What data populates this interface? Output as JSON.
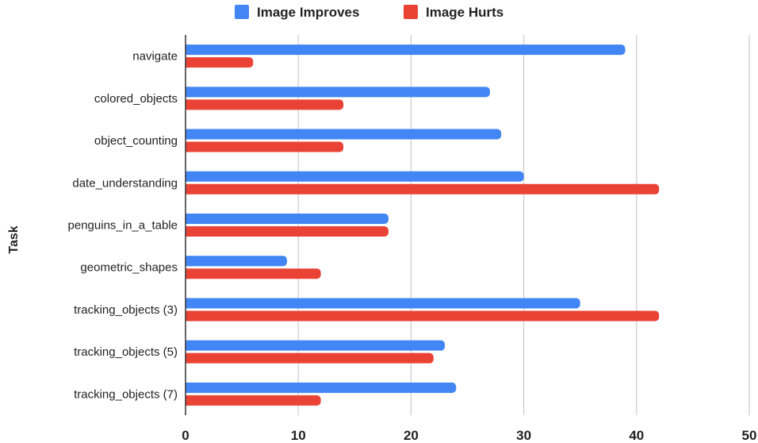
{
  "chart_data": {
    "type": "bar",
    "orientation": "horizontal",
    "categories": [
      "navigate",
      "colored_objects",
      "object_counting",
      "date_understanding",
      "penguins_in_a_table",
      "geometric_shapes",
      "tracking_objects (3)",
      "tracking_objects (5)",
      "tracking_objects (7)"
    ],
    "series": [
      {
        "name": "Image Improves",
        "color": "#4285f4",
        "values": [
          39,
          27,
          28,
          30,
          18,
          9,
          35,
          23,
          24
        ]
      },
      {
        "name": "Image Hurts",
        "color": "#ea4335",
        "values": [
          6,
          14,
          14,
          42,
          18,
          12,
          42,
          22,
          12
        ]
      }
    ],
    "xlim": [
      0,
      50
    ],
    "xticks": [
      "0",
      "10",
      "20",
      "30",
      "40",
      "50"
    ],
    "ylabel": "Task",
    "xlabel": "",
    "grid": true,
    "legend": "top-center"
  }
}
